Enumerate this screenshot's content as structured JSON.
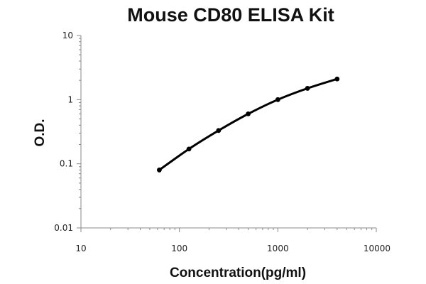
{
  "chart_data": {
    "type": "line",
    "title": "Mouse CD80 ELISA Kit",
    "xlabel": "Concentration(pg/ml)",
    "ylabel": "O.D.",
    "x_scale": "log",
    "y_scale": "log",
    "xlim": [
      10,
      10000
    ],
    "ylim": [
      0.01,
      10
    ],
    "x_ticks": [
      10,
      100,
      1000,
      10000
    ],
    "x_tick_labels": [
      "10",
      "100",
      "1000",
      "10000"
    ],
    "y_ticks": [
      0.01,
      0.1,
      1,
      10
    ],
    "y_tick_labels": [
      "0.01",
      "0.1",
      "1",
      "10"
    ],
    "grid": false,
    "legend": "none",
    "series": [
      {
        "x": [
          62.5,
          125,
          250,
          500,
          1000,
          2000,
          4000
        ],
        "y": [
          0.08,
          0.17,
          0.33,
          0.6,
          1.0,
          1.5,
          2.1
        ]
      }
    ],
    "colors": {
      "line": "#000000",
      "axis": "#888888",
      "text": "#111111"
    }
  }
}
